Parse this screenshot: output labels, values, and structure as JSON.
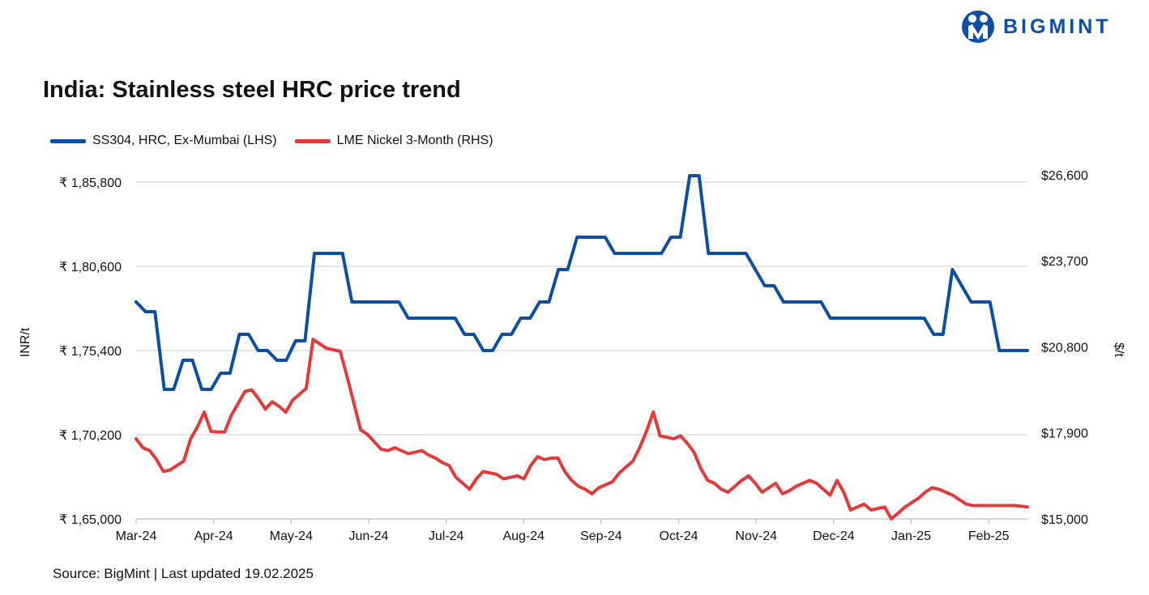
{
  "brand": {
    "name": "BIGMINT",
    "color": "#0c4ea2",
    "icon": "bigmint-logo-icon"
  },
  "title": "India: Stainless steel HRC price trend",
  "source": "Source: BigMint | Last updated 19.02.2025",
  "chart_data": {
    "type": "line",
    "title": "India: Stainless steel HRC price trend",
    "legend_position": "top-left",
    "grid": "horizontal",
    "x_ticks": [
      "Mar-24",
      "Apr-24",
      "May-24",
      "Jun-24",
      "Jul-24",
      "Aug-24",
      "Sep-24",
      "Oct-24",
      "Nov-24",
      "Dec-24",
      "Jan-25",
      "Feb-25"
    ],
    "y_left": {
      "label": "INR/t",
      "range": [
        165000,
        186800
      ],
      "ticks": [
        165000,
        170200,
        175400,
        180600,
        185800
      ],
      "tick_labels": [
        "₹ 1,65,000",
        "₹ 1,70,200",
        "₹ 1,75,400",
        "₹ 1,80,600",
        "₹ 1,85,800"
      ]
    },
    "y_right": {
      "label": "$/t",
      "range": [
        15000,
        26900
      ],
      "ticks": [
        15000,
        17900,
        20800,
        23700,
        26600
      ],
      "tick_labels": [
        "$15,000",
        "$17,900",
        "$20,800",
        "$23,700",
        "$26,600"
      ]
    },
    "series": [
      {
        "name": "SS304, HRC, Ex-Mumbai (LHS)",
        "axis": "left",
        "color": "#0c4ea2",
        "values": [
          178400,
          177800,
          177800,
          173000,
          173000,
          174800,
          174800,
          173000,
          173000,
          174000,
          174000,
          176400,
          176400,
          175400,
          175400,
          174800,
          174800,
          176000,
          176000,
          181400,
          181400,
          181400,
          181400,
          178400,
          178400,
          178400,
          178400,
          178400,
          178400,
          177400,
          177400,
          177400,
          177400,
          177400,
          177400,
          176400,
          176400,
          175400,
          175400,
          176400,
          176400,
          177400,
          177400,
          178400,
          178400,
          180400,
          180400,
          182400,
          182400,
          182400,
          182400,
          181400,
          181400,
          181400,
          181400,
          181400,
          181400,
          182400,
          182400,
          186200,
          186200,
          181400,
          181400,
          181400,
          181400,
          181400,
          180400,
          179400,
          179400,
          178400,
          178400,
          178400,
          178400,
          178400,
          177400,
          177400,
          177400,
          177400,
          177400,
          177400,
          177400,
          177400,
          177400,
          177400,
          177400,
          176400,
          176400,
          180400,
          179400,
          178400,
          178400,
          178400,
          175400,
          175400,
          175400,
          175400
        ]
      },
      {
        "name": "LME Nickel 3-Month (RHS)",
        "axis": "right",
        "color": "#e23b3b",
        "values": [
          17700,
          17400,
          17300,
          17000,
          16600,
          16650,
          16800,
          16950,
          17700,
          18100,
          18600,
          17950,
          17930,
          17930,
          18500,
          18900,
          19300,
          19350,
          19050,
          18700,
          18950,
          18800,
          18600,
          19000,
          19200,
          19400,
          21050,
          20900,
          20750,
          20700,
          20650,
          19800,
          18900,
          18000,
          17850,
          17600,
          17350,
          17300,
          17400,
          17300,
          17200,
          17250,
          17300,
          17150,
          17050,
          16900,
          16800,
          16400,
          16200,
          16000,
          16350,
          16600,
          16550,
          16500,
          16350,
          16400,
          16450,
          16350,
          16800,
          17100,
          17000,
          17050,
          17050,
          16600,
          16300,
          16100,
          16000,
          15850,
          16050,
          16150,
          16250,
          16550,
          16750,
          16950,
          17400,
          17950,
          18600,
          17800,
          17750,
          17700,
          17800,
          17550,
          17250,
          16700,
          16300,
          16200,
          16000,
          15900,
          16100,
          16300,
          16450,
          16200,
          15900,
          16050,
          16200,
          15850,
          15950,
          16100,
          16200,
          16300,
          16200,
          16000,
          15800,
          16300,
          15900,
          15300,
          15400,
          15500,
          15300,
          15350,
          15400,
          15000,
          15200,
          15400,
          15550,
          15700,
          15900,
          16050,
          16000,
          15900,
          15800,
          15650,
          15500,
          15450,
          15450,
          15450,
          15450,
          15450,
          15450,
          15450,
          15430,
          15400
        ]
      }
    ]
  }
}
